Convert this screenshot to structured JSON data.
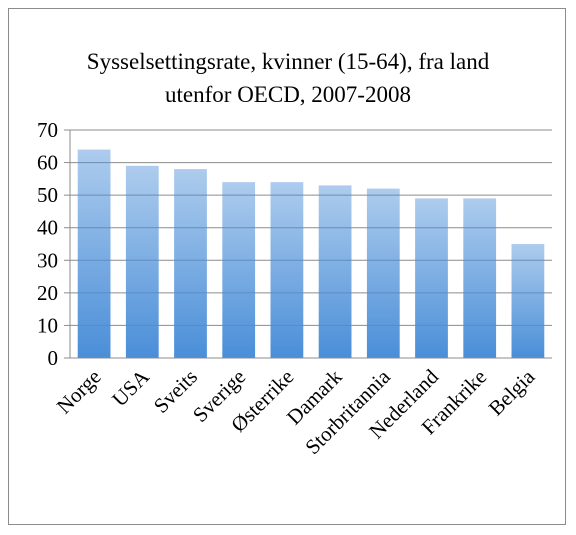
{
  "chart_data": {
    "type": "bar",
    "title": "Sysselsettingsrate, kvinner (15-64), fra land utenfor OECD, 2007-2008",
    "categories": [
      "Norge",
      "USA",
      "Sveits",
      "Sverige",
      "Østerrike",
      "Damark",
      "Storbritannia",
      "Nederland",
      "Frankrike",
      "Belgia"
    ],
    "values": [
      64,
      59,
      58,
      54,
      54,
      53,
      52,
      49,
      49,
      35
    ],
    "color": "#4a8ed8",
    "ylim": [
      0,
      70
    ],
    "yticks": [
      0,
      10,
      20,
      30,
      40,
      50,
      60,
      70
    ],
    "grid": true
  }
}
